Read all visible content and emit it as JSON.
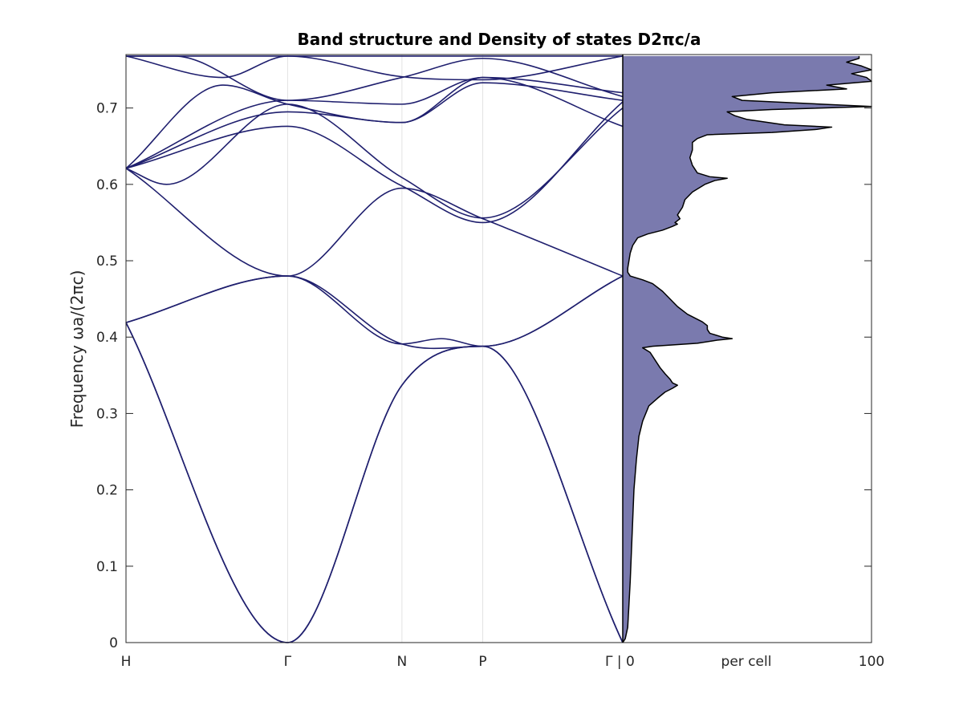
{
  "chart_data": {
    "type": "line",
    "title": "Band structure and Density of states D2πc/a",
    "ylabel": "Frequency ωa/(2πc)",
    "ylim": [
      0,
      0.77
    ],
    "yticks": [
      0,
      0.1,
      0.2,
      0.3,
      0.4,
      0.5,
      0.6,
      0.7
    ],
    "ytick_labels": [
      "0",
      "0.1",
      "0.2",
      "0.3",
      "0.4",
      "0.5",
      "0.6",
      "0.7"
    ],
    "kpoint_labels": [
      "H",
      "Γ",
      "N",
      "P",
      "Γ | 0"
    ],
    "kpoint_positions": [
      0,
      1,
      1.7071,
      2.2071,
      3.0731
    ],
    "grid": "vertical lines at high-symmetry points",
    "line_color": "#1f1f6e",
    "bands": [
      {
        "x": [
          0,
          1,
          1.7071,
          2.2071,
          3.0731
        ],
        "y": [
          0.419,
          0,
          0.337,
          0.388,
          0
        ]
      },
      {
        "x": [
          0,
          1,
          1.7071,
          2.2071,
          3.0731
        ],
        "y": [
          0.419,
          0,
          0.337,
          0.388,
          0
        ]
      },
      {
        "x": [
          0,
          1,
          1.7071,
          1.95,
          2.2071,
          3.0731
        ],
        "y": [
          0.419,
          0.48,
          0.391,
          0.398,
          0.388,
          0.48
        ]
      },
      {
        "x": [
          0,
          1,
          1.7071,
          2.2071,
          3.0731
        ],
        "y": [
          0.419,
          0.48,
          0.391,
          0.388,
          0.48
        ]
      },
      {
        "x": [
          0,
          1,
          1.7071,
          2.2071,
          3.0731
        ],
        "y": [
          0.621,
          0.48,
          0.595,
          0.555,
          0.48
        ]
      },
      {
        "x": [
          0,
          0.25,
          1,
          1.7071,
          2.2071,
          3.0731
        ],
        "y": [
          0.621,
          0.6,
          0.705,
          0.609,
          0.556,
          0.7
        ]
      },
      {
        "x": [
          0,
          1,
          1.7071,
          2.2071,
          3.0731
        ],
        "y": [
          0.621,
          0.676,
          0.598,
          0.55,
          0.708
        ]
      },
      {
        "x": [
          0,
          1,
          1.7071,
          2.2071,
          3.0731
        ],
        "y": [
          0.621,
          0.695,
          0.681,
          0.74,
          0.676
        ]
      },
      {
        "x": [
          0,
          0.6,
          1,
          1.7071,
          2.2071,
          3.0731
        ],
        "y": [
          0.621,
          0.73,
          0.705,
          0.681,
          0.733,
          0.71
        ]
      },
      {
        "x": [
          0,
          1,
          1.7071,
          2.2071,
          3.0731
        ],
        "y": [
          0.621,
          0.71,
          0.705,
          0.74,
          0.72
        ]
      },
      {
        "x": [
          0,
          0.6,
          1,
          1.7071,
          2.2071,
          3.0731
        ],
        "y": [
          0.768,
          0.74,
          0.768,
          0.741,
          0.737,
          0.768
        ]
      },
      {
        "x": [
          0,
          0.3,
          1,
          1.7071,
          2.2071,
          3.0731
        ],
        "y": [
          0.768,
          0.768,
          0.71,
          0.74,
          0.765,
          0.715
        ]
      },
      {
        "x": [
          0,
          1,
          1.7071,
          2.2071,
          3.0731
        ],
        "y": [
          0.768,
          0.768,
          0.768,
          0.768,
          0.768
        ]
      }
    ],
    "dos": {
      "xlim": [
        0,
        100
      ],
      "xlabel": "per cell",
      "xtick_labels": [
        "0",
        "per cell",
        "100"
      ],
      "fill_color": "#7a7aae",
      "edge_color": "#000000",
      "curve": [
        [
          0.0,
          0
        ],
        [
          0.005,
          1
        ],
        [
          0.02,
          2
        ],
        [
          0.05,
          2.5
        ],
        [
          0.08,
          3
        ],
        [
          0.12,
          3.5
        ],
        [
          0.16,
          4
        ],
        [
          0.2,
          4.5
        ],
        [
          0.24,
          5.5
        ],
        [
          0.27,
          6.5
        ],
        [
          0.29,
          8
        ],
        [
          0.31,
          10.5
        ],
        [
          0.32,
          14
        ],
        [
          0.328,
          17
        ],
        [
          0.333,
          20
        ],
        [
          0.337,
          22
        ],
        [
          0.34,
          20
        ],
        [
          0.345,
          19
        ],
        [
          0.352,
          17
        ],
        [
          0.36,
          15
        ],
        [
          0.37,
          13
        ],
        [
          0.38,
          11
        ],
        [
          0.386,
          8
        ],
        [
          0.388,
          12
        ],
        [
          0.392,
          30
        ],
        [
          0.396,
          38
        ],
        [
          0.398,
          44
        ],
        [
          0.4,
          40
        ],
        [
          0.405,
          35
        ],
        [
          0.41,
          34
        ],
        [
          0.415,
          34
        ],
        [
          0.42,
          32
        ],
        [
          0.43,
          26
        ],
        [
          0.44,
          22
        ],
        [
          0.45,
          19
        ],
        [
          0.46,
          16
        ],
        [
          0.47,
          12
        ],
        [
          0.475,
          8
        ],
        [
          0.48,
          3
        ],
        [
          0.485,
          2
        ],
        [
          0.49,
          2
        ],
        [
          0.5,
          2.5
        ],
        [
          0.51,
          3
        ],
        [
          0.52,
          4
        ],
        [
          0.53,
          6
        ],
        [
          0.535,
          10
        ],
        [
          0.54,
          16
        ],
        [
          0.545,
          20
        ],
        [
          0.548,
          22
        ],
        [
          0.55,
          21
        ],
        [
          0.555,
          23
        ],
        [
          0.56,
          22
        ],
        [
          0.57,
          24
        ],
        [
          0.58,
          25
        ],
        [
          0.59,
          28
        ],
        [
          0.6,
          33
        ],
        [
          0.605,
          37
        ],
        [
          0.608,
          42
        ],
        [
          0.61,
          35
        ],
        [
          0.615,
          30
        ],
        [
          0.625,
          28
        ],
        [
          0.635,
          27
        ],
        [
          0.645,
          28
        ],
        [
          0.655,
          28
        ],
        [
          0.66,
          30
        ],
        [
          0.665,
          34
        ],
        [
          0.668,
          60
        ],
        [
          0.672,
          78
        ],
        [
          0.675,
          84
        ],
        [
          0.678,
          65
        ],
        [
          0.685,
          50
        ],
        [
          0.69,
          45
        ],
        [
          0.695,
          42
        ],
        [
          0.698,
          60
        ],
        [
          0.702,
          100
        ],
        [
          0.705,
          80
        ],
        [
          0.71,
          48
        ],
        [
          0.715,
          44
        ],
        [
          0.72,
          60
        ],
        [
          0.725,
          90
        ],
        [
          0.73,
          82
        ],
        [
          0.735,
          100
        ],
        [
          0.74,
          98
        ],
        [
          0.745,
          92
        ],
        [
          0.75,
          100
        ],
        [
          0.755,
          96
        ],
        [
          0.76,
          90
        ],
        [
          0.765,
          95
        ],
        [
          0.768,
          95
        ]
      ]
    }
  }
}
